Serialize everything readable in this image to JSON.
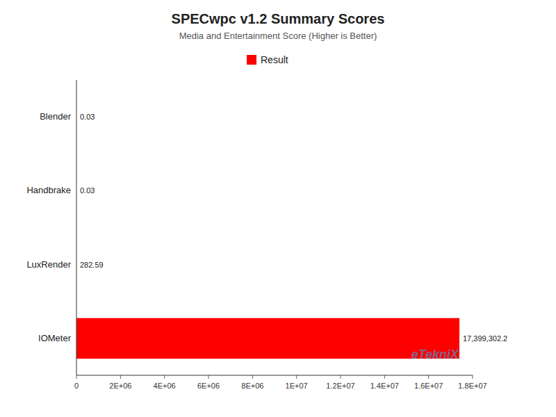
{
  "chart_data": {
    "type": "bar",
    "orientation": "horizontal",
    "title": "SPECwpc v1.2 Summary Scores",
    "subtitle": "Media and Entertainment Score (Higher is Better)",
    "categories": [
      "IOMeter",
      "LuxRender",
      "Handbrake",
      "Blender"
    ],
    "series": [
      {
        "name": "Result",
        "color": "#FF0000",
        "values": [
          17399302.2,
          282.59,
          0.03,
          0.03
        ],
        "value_labels": [
          "17,399,302.2",
          "282.59",
          "0.03",
          "0.03"
        ]
      }
    ],
    "data_labels": true,
    "legend": "top",
    "grid": false,
    "xlim": [
      0,
      18000000
    ],
    "xticks": [
      0,
      {
        "value": 2000000,
        "label": "2E+06"
      },
      {
        "value": 4000000,
        "label": "4E+06"
      },
      {
        "value": 6000000,
        "label": "6E+06"
      },
      {
        "value": 8000000,
        "label": "8E+06"
      },
      {
        "value": 10000000,
        "label": "1E+07"
      },
      {
        "value": 12000000,
        "label": "1.2E+07"
      },
      {
        "value": 14000000,
        "label": "1.4E+07"
      },
      {
        "value": 16000000,
        "label": "1.6E+07"
      },
      {
        "value": 18000000,
        "label": "1.8E+07"
      }
    ],
    "annotations": [
      {
        "text": "eTekniX",
        "color": "#29ABE2"
      }
    ]
  }
}
